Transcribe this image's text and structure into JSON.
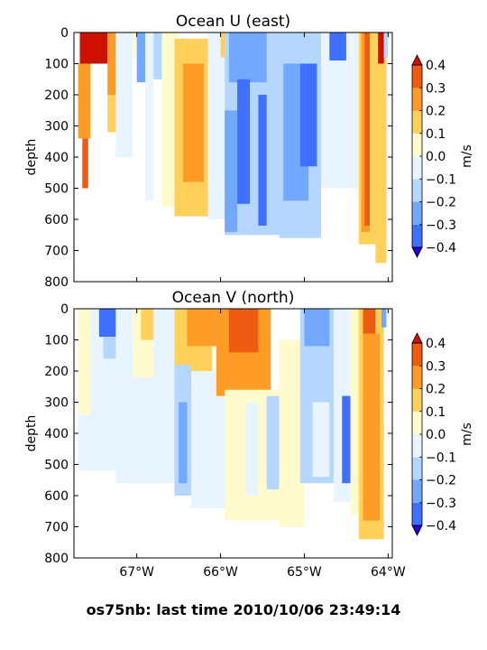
{
  "figure_caption": "os75nb: last time 2010/10/06 23:49:14",
  "chart_data": [
    {
      "type": "heatmap",
      "title": "Ocean U (east)",
      "xlabel": "",
      "ylabel": "depth",
      "xlim": [
        -67.75,
        -63.95
      ],
      "ylim": [
        800,
        0
      ],
      "x_ticks": [
        -67,
        -66,
        -65,
        -64
      ],
      "x_tick_labels": [
        "67°W",
        "66°W",
        "65°W",
        "64°W"
      ],
      "y_ticks": [
        0,
        100,
        200,
        300,
        400,
        500,
        600,
        700,
        800
      ],
      "y_tick_labels": [
        "0",
        "100",
        "200",
        "300",
        "400",
        "500",
        "600",
        "700",
        "800"
      ],
      "colorbar": {
        "label": "m/s",
        "levels": [
          -0.4,
          -0.3,
          -0.2,
          -0.1,
          0.0,
          0.1,
          0.2,
          0.3,
          0.4
        ],
        "tick_labels": [
          "−0.4",
          "−0.3",
          "−0.2",
          "−0.1",
          "0.0",
          "0.1",
          "0.2",
          "0.3",
          "0.4"
        ],
        "extend": "both"
      },
      "grid": false,
      "regions": [
        {
          "x": [
            -67.68,
            -67.35
          ],
          "depth": [
            0,
            100
          ],
          "value": 0.4
        },
        {
          "x": [
            -67.7,
            -67.55
          ],
          "depth": [
            100,
            340
          ],
          "value": 0.2
        },
        {
          "x": [
            -67.65,
            -67.58
          ],
          "depth": [
            340,
            500
          ],
          "value": 0.3
        },
        {
          "x": [
            -67.35,
            -67.25
          ],
          "depth": [
            0,
            320
          ],
          "value": 0.1
        },
        {
          "x": [
            -67.35,
            -67.18
          ],
          "depth": [
            0,
            200
          ],
          "value": 0.2
        },
        {
          "x": [
            -67.25,
            -67.05
          ],
          "depth": [
            0,
            400
          ],
          "value": -0.1
        },
        {
          "x": [
            -67.05,
            -66.95
          ],
          "depth": [
            0,
            80
          ],
          "value": 0.0
        },
        {
          "x": [
            -67.0,
            -66.9
          ],
          "depth": [
            0,
            160
          ],
          "value": -0.3
        },
        {
          "x": [
            -66.9,
            -66.8
          ],
          "depth": [
            0,
            540
          ],
          "value": -0.1
        },
        {
          "x": [
            -66.8,
            -66.7
          ],
          "depth": [
            0,
            150
          ],
          "value": -0.2
        },
        {
          "x": [
            -66.7,
            -66.5
          ],
          "depth": [
            0,
            560
          ],
          "value": 0.0
        },
        {
          "x": [
            -66.55,
            -66.15
          ],
          "depth": [
            20,
            590
          ],
          "value": 0.1
        },
        {
          "x": [
            -66.45,
            -66.2
          ],
          "depth": [
            100,
            480
          ],
          "value": 0.2
        },
        {
          "x": [
            -66.15,
            -65.95
          ],
          "depth": [
            0,
            600
          ],
          "value": -0.1
        },
        {
          "x": [
            -66.0,
            -65.9
          ],
          "depth": [
            0,
            80
          ],
          "value": 0.1
        },
        {
          "x": [
            -65.95,
            -65.3
          ],
          "depth": [
            0,
            650
          ],
          "value": -0.2
        },
        {
          "x": [
            -65.9,
            -65.45
          ],
          "depth": [
            0,
            160
          ],
          "value": -0.3
        },
        {
          "x": [
            -65.95,
            -65.8
          ],
          "depth": [
            250,
            640
          ],
          "value": -0.3
        },
        {
          "x": [
            -65.8,
            -65.65
          ],
          "depth": [
            150,
            550
          ],
          "value": -0.4
        },
        {
          "x": [
            -65.55,
            -65.45
          ],
          "depth": [
            200,
            620
          ],
          "value": -0.4
        },
        {
          "x": [
            -65.3,
            -64.8
          ],
          "depth": [
            0,
            660
          ],
          "value": -0.2
        },
        {
          "x": [
            -65.25,
            -64.95
          ],
          "depth": [
            100,
            540
          ],
          "value": -0.3
        },
        {
          "x": [
            -65.05,
            -64.85
          ],
          "depth": [
            100,
            430
          ],
          "value": -0.4
        },
        {
          "x": [
            -64.8,
            -64.5
          ],
          "depth": [
            0,
            500
          ],
          "value": -0.1
        },
        {
          "x": [
            -64.7,
            -64.45
          ],
          "depth": [
            0,
            90
          ],
          "value": -0.4
        },
        {
          "x": [
            -64.5,
            -64.35
          ],
          "depth": [
            0,
            500
          ],
          "value": -0.1
        },
        {
          "x": [
            -64.35,
            -64.15
          ],
          "depth": [
            0,
            680
          ],
          "value": 0.1
        },
        {
          "x": [
            -64.32,
            -64.22
          ],
          "depth": [
            0,
            640
          ],
          "value": 0.2
        },
        {
          "x": [
            -64.28,
            -64.22
          ],
          "depth": [
            0,
            620
          ],
          "value": 0.3
        },
        {
          "x": [
            -64.15,
            -64.02
          ],
          "depth": [
            0,
            740
          ],
          "value": 0.1
        },
        {
          "x": [
            -64.12,
            -64.05
          ],
          "depth": [
            0,
            100
          ],
          "value": 0.4
        },
        {
          "x": [
            -64.05,
            -64.0
          ],
          "depth": [
            0,
            80
          ],
          "value": -0.2
        }
      ]
    },
    {
      "type": "heatmap",
      "title": "Ocean V (north)",
      "xlabel": "",
      "ylabel": "depth",
      "xlim": [
        -67.75,
        -63.95
      ],
      "ylim": [
        800,
        0
      ],
      "x_ticks": [
        -67,
        -66,
        -65,
        -64
      ],
      "x_tick_labels": [
        "67°W",
        "66°W",
        "65°W",
        "64°W"
      ],
      "y_ticks": [
        0,
        100,
        200,
        300,
        400,
        500,
        600,
        700,
        800
      ],
      "y_tick_labels": [
        "0",
        "100",
        "200",
        "300",
        "400",
        "500",
        "600",
        "700",
        "800"
      ],
      "colorbar": {
        "label": "m/s",
        "levels": [
          -0.4,
          -0.3,
          -0.2,
          -0.1,
          0.0,
          0.1,
          0.2,
          0.3,
          0.4
        ],
        "tick_labels": [
          "−0.4",
          "−0.3",
          "−0.2",
          "−0.1",
          "0.0",
          "0.1",
          "0.2",
          "0.3",
          "0.4"
        ],
        "extend": "both"
      },
      "grid": false,
      "regions": [
        {
          "x": [
            -67.7,
            -67.25
          ],
          "depth": [
            0,
            520
          ],
          "value": -0.1
        },
        {
          "x": [
            -67.7,
            -67.55
          ],
          "depth": [
            0,
            340
          ],
          "value": 0.0
        },
        {
          "x": [
            -67.45,
            -67.05
          ],
          "depth": [
            0,
            90
          ],
          "value": -0.4
        },
        {
          "x": [
            -67.4,
            -67.1
          ],
          "depth": [
            90,
            160
          ],
          "value": -0.2
        },
        {
          "x": [
            -67.25,
            -66.55
          ],
          "depth": [
            0,
            560
          ],
          "value": -0.1
        },
        {
          "x": [
            -67.05,
            -66.8
          ],
          "depth": [
            0,
            220
          ],
          "value": 0.0
        },
        {
          "x": [
            -66.95,
            -66.8
          ],
          "depth": [
            0,
            100
          ],
          "value": 0.1
        },
        {
          "x": [
            -66.55,
            -66.1
          ],
          "depth": [
            0,
            240
          ],
          "value": 0.1
        },
        {
          "x": [
            -66.4,
            -66.0
          ],
          "depth": [
            0,
            120
          ],
          "value": 0.2
        },
        {
          "x": [
            -66.55,
            -66.35
          ],
          "depth": [
            180,
            600
          ],
          "value": -0.2
        },
        {
          "x": [
            -66.5,
            -66.4
          ],
          "depth": [
            300,
            560
          ],
          "value": -0.3
        },
        {
          "x": [
            -66.35,
            -65.95
          ],
          "depth": [
            200,
            640
          ],
          "value": -0.1
        },
        {
          "x": [
            -66.05,
            -65.4
          ],
          "depth": [
            0,
            280
          ],
          "value": 0.2
        },
        {
          "x": [
            -65.9,
            -65.55
          ],
          "depth": [
            0,
            140
          ],
          "value": 0.3
        },
        {
          "x": [
            -65.95,
            -65.3
          ],
          "depth": [
            260,
            680
          ],
          "value": 0.0
        },
        {
          "x": [
            -65.7,
            -65.55
          ],
          "depth": [
            300,
            600
          ],
          "value": -0.1
        },
        {
          "x": [
            -65.45,
            -65.3
          ],
          "depth": [
            280,
            580
          ],
          "value": -0.2
        },
        {
          "x": [
            -65.3,
            -65.0
          ],
          "depth": [
            100,
            700
          ],
          "value": 0.0
        },
        {
          "x": [
            -65.05,
            -64.65
          ],
          "depth": [
            0,
            560
          ],
          "value": -0.2
        },
        {
          "x": [
            -65.0,
            -64.7
          ],
          "depth": [
            0,
            120
          ],
          "value": -0.3
        },
        {
          "x": [
            -64.9,
            -64.7
          ],
          "depth": [
            300,
            540
          ],
          "value": -0.1
        },
        {
          "x": [
            -64.65,
            -64.45
          ],
          "depth": [
            0,
            620
          ],
          "value": -0.1
        },
        {
          "x": [
            -64.55,
            -64.45
          ],
          "depth": [
            280,
            560
          ],
          "value": -0.4
        },
        {
          "x": [
            -64.45,
            -64.35
          ],
          "depth": [
            0,
            660
          ],
          "value": 0.0
        },
        {
          "x": [
            -64.35,
            -64.05
          ],
          "depth": [
            0,
            740
          ],
          "value": 0.1
        },
        {
          "x": [
            -64.3,
            -64.1
          ],
          "depth": [
            80,
            680
          ],
          "value": 0.2
        },
        {
          "x": [
            -64.3,
            -64.15
          ],
          "depth": [
            0,
            80
          ],
          "value": 0.3
        },
        {
          "x": [
            -64.08,
            -64.02
          ],
          "depth": [
            0,
            60
          ],
          "value": -0.3
        }
      ]
    }
  ],
  "colors": {
    "levels_fill": [
      "#3333ff",
      "#3e6fff",
      "#73a8ff",
      "#b4d6ff",
      "#e8f4ff",
      "#fffbcc",
      "#ffd15a",
      "#ff9c26",
      "#ef5b11",
      "#d82a0c"
    ],
    "under": "#2200dd",
    "over": "#cc1100",
    "axis": "#000000"
  }
}
